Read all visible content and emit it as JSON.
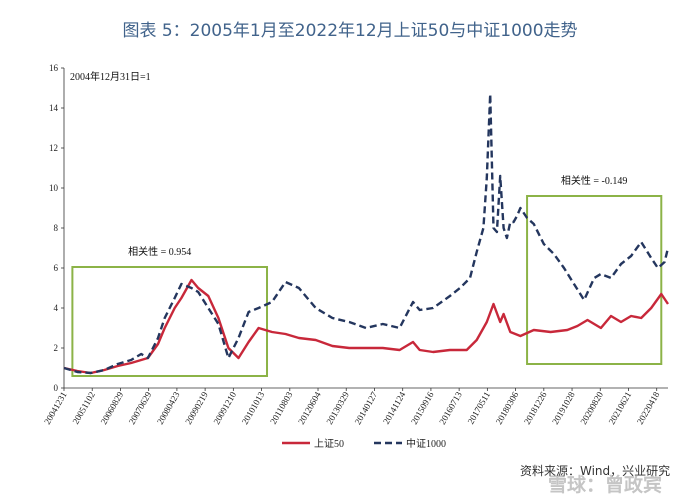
{
  "figure_title": "图表 5：2005年1月至2022年12月上证50与中证1000走势",
  "source": "资料来源：Wind，兴业研究",
  "watermark": "雪球：曾政宾",
  "colors": {
    "title": "#41638b",
    "sz50": "#c8283a",
    "csi1000": "#24365e",
    "box": "#8cb347"
  },
  "chart_data": {
    "type": "line",
    "title": "图表 5：2005年1月至2022年12月上证50与中证1000走势",
    "xlabel": "",
    "ylabel": "",
    "ylim": [
      0,
      16
    ],
    "yticks": [
      0,
      2,
      4,
      6,
      8,
      10,
      12,
      14,
      16
    ],
    "x_range": [
      0,
      18
    ],
    "x_tick_labels": [
      "20041231",
      "20051102",
      "20060829",
      "20070629",
      "20080423",
      "20090219",
      "20091210",
      "20101013",
      "20110803",
      "20120604",
      "20130329",
      "20140127",
      "20141124",
      "20150916",
      "20160713",
      "20170511",
      "20180306",
      "20181226",
      "20191028",
      "20200820",
      "20210621",
      "20220418"
    ],
    "note": "2004年12月31日=1",
    "legend_position": "bottom",
    "grid": false,
    "series": [
      {
        "name": "上证50",
        "style": "solid",
        "color": "#c8283a",
        "x": [
          0,
          0.4,
          0.8,
          1.2,
          1.6,
          2.0,
          2.3,
          2.5,
          2.8,
          3.0,
          3.3,
          3.5,
          3.8,
          4.0,
          4.3,
          4.6,
          4.9,
          5.2,
          5.5,
          5.8,
          6.2,
          6.6,
          7.0,
          7.5,
          8.0,
          8.5,
          9.0,
          9.5,
          10.0,
          10.4,
          10.6,
          11.0,
          11.5,
          12.0,
          12.3,
          12.6,
          12.8,
          13.0,
          13.1,
          13.3,
          13.6,
          14.0,
          14.5,
          15.0,
          15.3,
          15.6,
          16.0,
          16.3,
          16.6,
          16.9,
          17.2,
          17.5,
          17.8,
          18.0
        ],
        "values": [
          1.0,
          0.85,
          0.75,
          0.9,
          1.1,
          1.25,
          1.4,
          1.5,
          2.2,
          3.0,
          4.0,
          4.5,
          5.4,
          5.0,
          4.6,
          3.5,
          2.0,
          1.5,
          2.3,
          3.0,
          2.8,
          2.7,
          2.5,
          2.4,
          2.1,
          2.0,
          2.0,
          2.0,
          1.9,
          2.3,
          1.9,
          1.8,
          1.9,
          1.9,
          2.4,
          3.3,
          4.2,
          3.3,
          3.7,
          2.8,
          2.6,
          2.9,
          2.8,
          2.9,
          3.1,
          3.4,
          3.0,
          3.6,
          3.3,
          3.6,
          3.5,
          4.0,
          4.7,
          4.2
        ]
      },
      {
        "name": "中证1000",
        "style": "dashed",
        "color": "#24365e",
        "x": [
          0,
          0.4,
          0.8,
          1.2,
          1.6,
          2.0,
          2.3,
          2.5,
          2.8,
          3.0,
          3.3,
          3.5,
          3.8,
          4.0,
          4.3,
          4.6,
          4.9,
          5.2,
          5.5,
          5.8,
          6.2,
          6.6,
          7.0,
          7.5,
          8.0,
          8.5,
          9.0,
          9.5,
          10.0,
          10.4,
          10.6,
          11.0,
          11.5,
          11.8,
          12.1,
          12.3,
          12.5,
          12.6,
          12.7,
          12.8,
          12.9,
          13.0,
          13.1,
          13.2,
          13.3,
          13.4,
          13.5,
          13.6,
          13.8,
          14.0,
          14.3,
          14.6,
          14.9,
          15.2,
          15.5,
          15.8,
          16.0,
          16.3,
          16.6,
          16.9,
          17.2,
          17.5,
          17.7,
          17.9,
          18.0
        ],
        "values": [
          1.0,
          0.8,
          0.75,
          0.9,
          1.2,
          1.4,
          1.7,
          1.5,
          2.5,
          3.5,
          4.5,
          5.2,
          5.0,
          4.8,
          4.0,
          3.2,
          1.5,
          2.5,
          3.8,
          4.0,
          4.3,
          5.3,
          5.0,
          4.0,
          3.5,
          3.3,
          3.0,
          3.2,
          3.0,
          4.3,
          3.9,
          4.0,
          4.6,
          5.0,
          5.5,
          6.8,
          8.0,
          10.5,
          14.7,
          8.0,
          7.8,
          10.6,
          8.0,
          7.5,
          8.3,
          8.3,
          8.6,
          9.0,
          8.5,
          8.2,
          7.2,
          6.7,
          6.0,
          5.2,
          4.4,
          5.5,
          5.7,
          5.5,
          6.2,
          6.6,
          7.3,
          6.5,
          6.0,
          6.3,
          7.0
        ]
      }
    ],
    "annotations": [
      {
        "label": "相关性 = 0.954",
        "x_range": [
          0.25,
          6.05
        ],
        "y_range": [
          0.6,
          6.05
        ]
      },
      {
        "label": "相关性 = -0.149",
        "x_range": [
          13.8,
          17.8
        ],
        "y_range": [
          1.2,
          9.6
        ]
      }
    ]
  }
}
